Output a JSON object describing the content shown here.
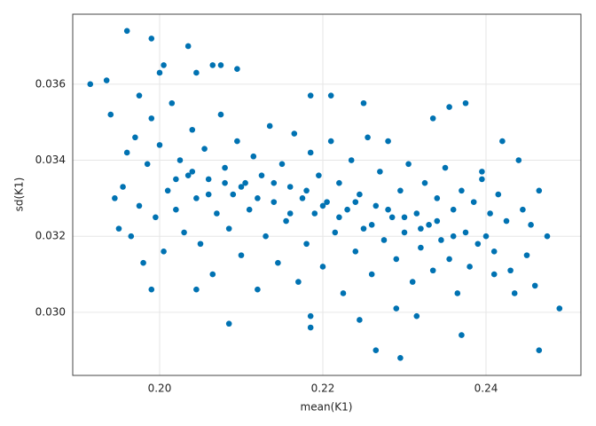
{
  "chart_data": {
    "type": "scatter",
    "xlabel": "mean(K1)",
    "ylabel": "sd(K1)",
    "color": "#0072b2",
    "grid": true,
    "xlim": [
      0.18935,
      0.25163
    ],
    "ylim": [
      0.02834,
      0.03784
    ],
    "xticks": [
      {
        "value": 0.2,
        "label": "0.20"
      },
      0.22,
      0.24
    ],
    "yticks": [
      {
        "value": 0.03,
        "label": "0.030"
      },
      0.032,
      0.034,
      0.036
    ],
    "x": [
      0.196,
      0.199,
      0.2035,
      0.1915,
      0.1935,
      0.194,
      0.2085,
      0.2185,
      0.2185,
      0.2265,
      0.2295,
      0.2465,
      0.249,
      0.237,
      0.2245,
      0.2315,
      0.199,
      0.2045,
      0.229,
      0.241,
      0.246,
      0.2435,
      0.2375,
      0.2355,
      0.2335,
      0.225,
      0.221,
      0.2185,
      0.2095,
      0.2065,
      0.2045,
      0.2005,
      0.2,
      0.1975,
      0.2075,
      0.242,
      0.244,
      0.2465,
      0.2455,
      0.245,
      0.2475,
      0.2395,
      0.24,
      0.1945,
      0.195,
      0.1955,
      0.196,
      0.1965,
      0.197,
      0.1975,
      0.198,
      0.1985,
      0.199,
      0.1995,
      0.2,
      0.2005,
      0.201,
      0.2015,
      0.202,
      0.2025,
      0.203,
      0.2035,
      0.204,
      0.2045,
      0.205,
      0.2055,
      0.206,
      0.2065,
      0.207,
      0.2075,
      0.208,
      0.2085,
      0.209,
      0.2095,
      0.21,
      0.2105,
      0.211,
      0.2115,
      0.212,
      0.2125,
      0.213,
      0.2135,
      0.214,
      0.2145,
      0.215,
      0.2155,
      0.216,
      0.2165,
      0.217,
      0.2175,
      0.218,
      0.2185,
      0.219,
      0.2195,
      0.22,
      0.2205,
      0.221,
      0.2215,
      0.222,
      0.2225,
      0.223,
      0.2235,
      0.224,
      0.2245,
      0.225,
      0.2255,
      0.226,
      0.2265,
      0.227,
      0.2275,
      0.228,
      0.2285,
      0.229,
      0.2295,
      0.23,
      0.2305,
      0.231,
      0.2315,
      0.232,
      0.2325,
      0.233,
      0.2335,
      0.234,
      0.2345,
      0.235,
      0.2355,
      0.236,
      0.2365,
      0.237,
      0.2375,
      0.238,
      0.2385,
      0.239,
      0.2395,
      0.2405,
      0.241,
      0.2415,
      0.2425,
      0.243,
      0.2445,
      0.202,
      0.204,
      0.206,
      0.208,
      0.21,
      0.212,
      0.214,
      0.216,
      0.218,
      0.22,
      0.222,
      0.224,
      0.226,
      0.228,
      0.23,
      0.232,
      0.234,
      0.236
    ],
    "y": [
      0.0374,
      0.0372,
      0.037,
      0.036,
      0.0361,
      0.0352,
      0.0297,
      0.0299,
      0.0296,
      0.029,
      0.0288,
      0.029,
      0.0301,
      0.0294,
      0.0298,
      0.0299,
      0.0306,
      0.0306,
      0.0301,
      0.031,
      0.0307,
      0.0305,
      0.0355,
      0.0354,
      0.0351,
      0.0355,
      0.0357,
      0.0357,
      0.0364,
      0.0365,
      0.0363,
      0.0365,
      0.0363,
      0.0357,
      0.0365,
      0.0345,
      0.034,
      0.0332,
      0.0323,
      0.0315,
      0.032,
      0.0337,
      0.032,
      0.033,
      0.0322,
      0.0333,
      0.0342,
      0.032,
      0.0346,
      0.0328,
      0.0313,
      0.0339,
      0.0351,
      0.0325,
      0.0344,
      0.0316,
      0.0332,
      0.0355,
      0.0327,
      0.034,
      0.0321,
      0.0336,
      0.0348,
      0.033,
      0.0318,
      0.0343,
      0.0335,
      0.031,
      0.0326,
      0.0352,
      0.0338,
      0.0322,
      0.0331,
      0.0345,
      0.0315,
      0.0334,
      0.0327,
      0.0341,
      0.0306,
      0.0336,
      0.032,
      0.0349,
      0.0329,
      0.0313,
      0.0339,
      0.0324,
      0.0333,
      0.0347,
      0.0308,
      0.033,
      0.0318,
      0.0342,
      0.0326,
      0.0336,
      0.0312,
      0.0329,
      0.0345,
      0.0321,
      0.0334,
      0.0305,
      0.0327,
      0.034,
      0.0316,
      0.0331,
      0.0322,
      0.0346,
      0.031,
      0.0328,
      0.0337,
      0.0319,
      0.0345,
      0.0325,
      0.0314,
      0.0332,
      0.0321,
      0.0339,
      0.0308,
      0.0326,
      0.0317,
      0.0334,
      0.0323,
      0.0311,
      0.033,
      0.0319,
      0.0338,
      0.0314,
      0.0327,
      0.0305,
      0.0332,
      0.0321,
      0.0312,
      0.0329,
      0.0318,
      0.0335,
      0.0326,
      0.0316,
      0.0331,
      0.0324,
      0.0311,
      0.0327,
      0.0335,
      0.0337,
      0.0331,
      0.0334,
      0.0333,
      0.033,
      0.0334,
      0.0326,
      0.0332,
      0.0328,
      0.0325,
      0.0329,
      0.0323,
      0.0327,
      0.0325,
      0.0322,
      0.0324,
      0.032
    ]
  }
}
